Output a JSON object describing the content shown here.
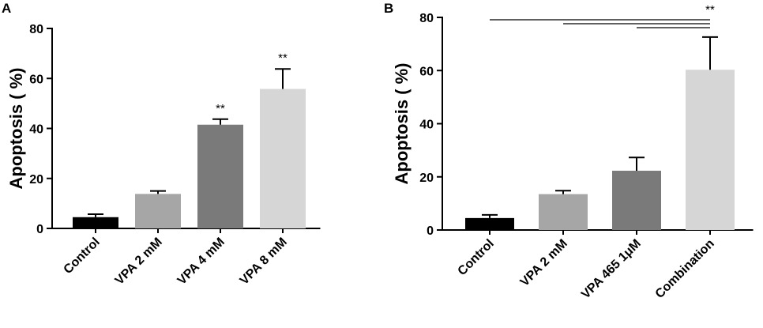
{
  "chart_data": [
    {
      "type": "bar",
      "panel": "A",
      "ylabel": "Apoptosis ( %)",
      "ylim": [
        0,
        80
      ],
      "yticks": [
        0,
        20,
        40,
        60,
        80
      ],
      "categories": [
        "Control",
        "VPA 2 mM",
        "VPA 4 mM",
        "VPA 8 mM"
      ],
      "values": [
        4.5,
        13.8,
        41.5,
        55.8
      ],
      "errors": [
        1.2,
        1.2,
        2.2,
        8.0
      ],
      "colors": [
        "#000000",
        "#a6a6a6",
        "#7a7a7a",
        "#d6d6d6"
      ],
      "annotations": [
        "",
        "",
        "**",
        "**"
      ],
      "significance_lines": []
    },
    {
      "type": "bar",
      "panel": "B",
      "ylabel": "Apoptosis ( %)",
      "ylim": [
        0,
        80
      ],
      "yticks": [
        0,
        20,
        40,
        60,
        80
      ],
      "categories": [
        "Control",
        "VPA 2 mM",
        "VPA 465 1μM",
        "Combination"
      ],
      "values": [
        4.5,
        13.5,
        22.3,
        60.3
      ],
      "errors": [
        1.2,
        1.3,
        5.0,
        12.3
      ],
      "colors": [
        "#000000",
        "#a6a6a6",
        "#7a7a7a",
        "#d6d6d6"
      ],
      "annotations": [
        "",
        "",
        "",
        "**"
      ],
      "significance_lines": [
        {
          "from": "Control",
          "to": "Combination",
          "label": "**"
        },
        {
          "from": "VPA 2 mM",
          "to": "Combination",
          "label": ""
        },
        {
          "from": "VPA 465 1μM",
          "to": "Combination",
          "label": ""
        }
      ]
    }
  ]
}
